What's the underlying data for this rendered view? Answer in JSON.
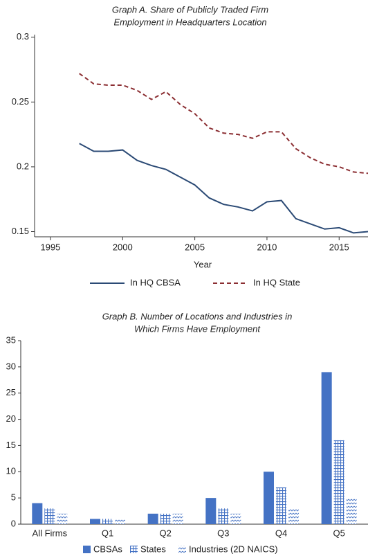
{
  "chart_data": [
    {
      "type": "line",
      "title": [
        "Graph A. Share of Publicly Traded Firm",
        "Employment in Headquarters Location"
      ],
      "x_label": "Year",
      "x": [
        1997,
        1998,
        1999,
        2000,
        2001,
        2002,
        2003,
        2004,
        2005,
        2006,
        2007,
        2008,
        2009,
        2010,
        2011,
        2012,
        2013,
        2014,
        2015,
        2016,
        2017
      ],
      "series": [
        {
          "name": "In HQ CBSA",
          "color": "#2b4a75",
          "style": "solid",
          "values": [
            0.218,
            0.212,
            0.212,
            0.213,
            0.205,
            0.201,
            0.198,
            0.192,
            0.186,
            0.176,
            0.171,
            0.169,
            0.166,
            0.173,
            0.174,
            0.16,
            0.156,
            0.152,
            0.153,
            0.149,
            0.15
          ]
        },
        {
          "name": "In HQ State",
          "color": "#8b2e32",
          "style": "dashed",
          "values": [
            0.272,
            0.264,
            0.263,
            0.263,
            0.259,
            0.252,
            0.258,
            0.248,
            0.241,
            0.23,
            0.226,
            0.225,
            0.222,
            0.227,
            0.227,
            0.214,
            0.207,
            0.202,
            0.2,
            0.196,
            0.195
          ]
        }
      ],
      "xlim": [
        1993.9,
        2017
      ],
      "xticks": [
        1995,
        2000,
        2005,
        2010,
        2015
      ],
      "ylim": [
        0.146,
        0.302
      ],
      "yticks": [
        0.15,
        0.2,
        0.25,
        0.3
      ]
    },
    {
      "type": "bar",
      "title": [
        "Graph B. Number of Locations and Industries in",
        "Which Firms Have Employment"
      ],
      "categories": [
        "All Firms",
        "Q1",
        "Q2",
        "Q3",
        "Q4",
        "Q5"
      ],
      "series": [
        {
          "name": "CBSAs",
          "color": "#4472c4",
          "pattern": "solid",
          "values": [
            4,
            1,
            2,
            5,
            10,
            29
          ]
        },
        {
          "name": "States",
          "color": "#4472c4",
          "pattern": "grid",
          "values": [
            3,
            1,
            2,
            3,
            7,
            16
          ]
        },
        {
          "name": "Industries (2D NAICS)",
          "color": "#4472c4",
          "pattern": "wave",
          "values": [
            2,
            1,
            2,
            2,
            3,
            5
          ]
        }
      ],
      "ylim": [
        0,
        35
      ],
      "yticks": [
        0,
        5,
        10,
        15,
        20,
        25,
        30,
        35
      ]
    }
  ]
}
